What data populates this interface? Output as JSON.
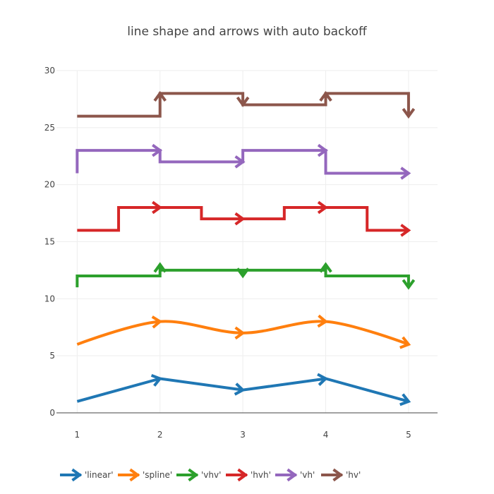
{
  "chart_data": {
    "type": "line",
    "title": "line shape and arrows with auto backoff",
    "xlabel": "",
    "ylabel": "",
    "xlim": [
      0.75,
      5.35
    ],
    "ylim": [
      0,
      30
    ],
    "xticks": [
      1,
      2,
      3,
      4,
      5
    ],
    "yticks": [
      0,
      5,
      10,
      15,
      20,
      25,
      30
    ],
    "grid": true,
    "legend": "bottom-horizontal",
    "x": [
      1,
      2,
      3,
      4,
      5
    ],
    "series": [
      {
        "name": "'linear'",
        "shape": "linear",
        "color": "#1f77b4",
        "values": [
          1,
          3,
          2,
          3,
          1
        ]
      },
      {
        "name": "'spline'",
        "shape": "spline",
        "color": "#ff7f0e",
        "values": [
          6,
          8,
          7,
          8,
          6
        ]
      },
      {
        "name": "'vhv'",
        "shape": "vhv",
        "color": "#2ca02c",
        "values": [
          11,
          13,
          12,
          13,
          11
        ]
      },
      {
        "name": "'hvh'",
        "shape": "hvh",
        "color": "#d62728",
        "values": [
          16,
          18,
          17,
          18,
          16
        ]
      },
      {
        "name": "'vh'",
        "shape": "vh",
        "color": "#9467bd",
        "values": [
          21,
          23,
          22,
          23,
          21
        ]
      },
      {
        "name": "'hv'",
        "shape": "hv",
        "color": "#8c564b",
        "values": [
          26,
          28,
          27,
          28,
          26
        ]
      }
    ]
  }
}
